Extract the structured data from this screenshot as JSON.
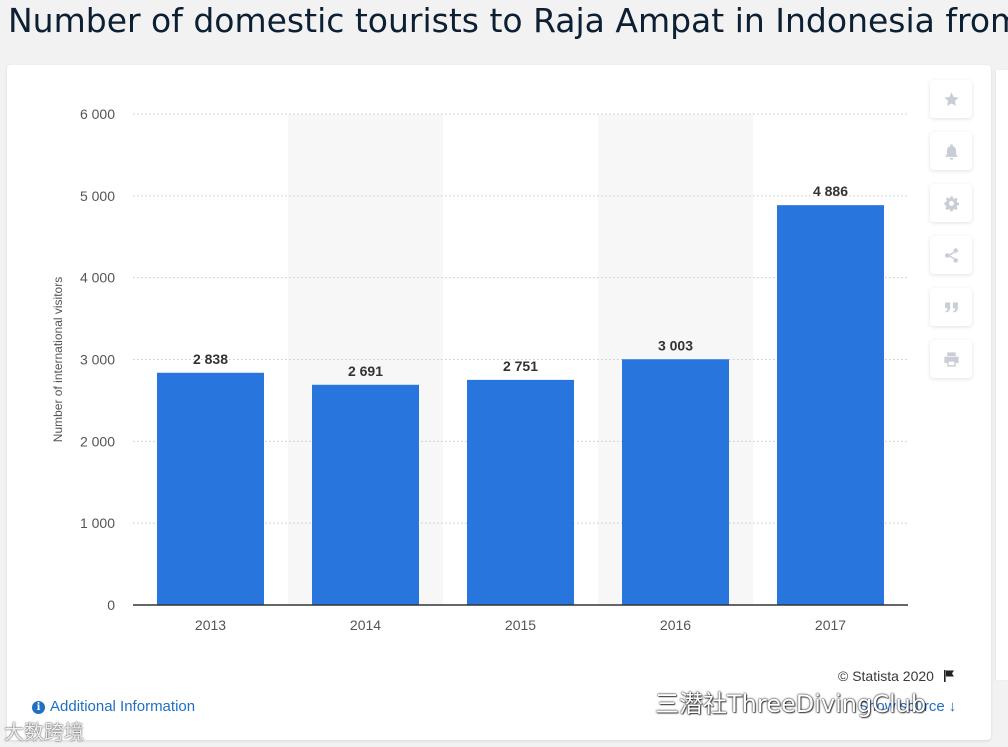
{
  "page": {
    "title": "Number of domestic tourists to Raja Ampat in Indonesia from"
  },
  "chart_data": {
    "type": "bar",
    "title": "Number of domestic tourists to Raja Ampat in Indonesia from",
    "categories": [
      "2013",
      "2014",
      "2015",
      "2016",
      "2017"
    ],
    "values": [
      2838,
      2691,
      2751,
      3003,
      4886
    ],
    "value_labels": [
      "2 838",
      "2 691",
      "2 751",
      "3 003",
      "4 886"
    ],
    "xlabel": "",
    "ylabel": "Number of international visitors",
    "ylim": [
      0,
      6000
    ],
    "yticks": [
      0,
      1000,
      2000,
      3000,
      4000,
      5000,
      6000
    ],
    "ytick_labels": [
      "0",
      "1 000",
      "2 000",
      "3 000",
      "4 000",
      "5 000",
      "6 000"
    ],
    "grid": true,
    "colors": {
      "bar": "#2876dd",
      "band": "#f7f7f7",
      "grid": "#c8c8c8"
    }
  },
  "toolbar": {
    "items": [
      "star-icon",
      "bell-icon",
      "gear-icon",
      "share-icon",
      "quote-icon",
      "print-icon"
    ]
  },
  "footer": {
    "copyright": "© Statista 2020",
    "additional_info": "Additional Information",
    "show_source": "Show source"
  },
  "watermarks": {
    "left": "大数跨境",
    "right": "三潜社ThreeDivingClub"
  }
}
